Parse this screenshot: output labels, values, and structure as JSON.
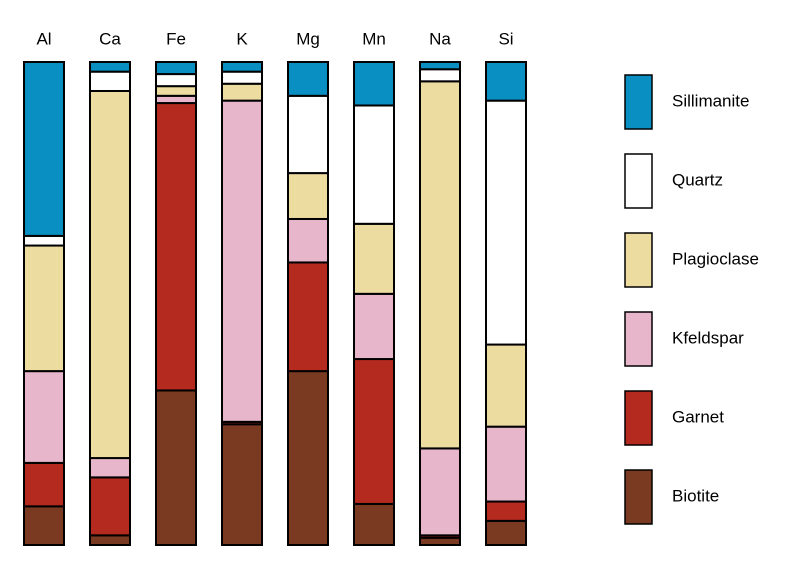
{
  "chart_data": {
    "type": "stacked-bar",
    "categories": [
      "Al",
      "Ca",
      "Fe",
      "K",
      "Mg",
      "Mn",
      "Na",
      "Si"
    ],
    "series": [
      {
        "name": "Biotite",
        "color": "#7a3a22",
        "values": [
          8,
          2,
          32,
          25,
          36,
          8.5,
          1.5,
          5
        ]
      },
      {
        "name": "Garnet",
        "color": "#b52a1f",
        "values": [
          9,
          12,
          59.5,
          0.5,
          22.5,
          30,
          0.5,
          4
        ]
      },
      {
        "name": "Kfeldspar",
        "color": "#e8b6cb",
        "values": [
          19,
          4,
          1.5,
          66.5,
          9,
          13.5,
          18,
          15.5
        ]
      },
      {
        "name": "Plagioclase",
        "color": "#ecdca0",
        "values": [
          26,
          76,
          2,
          3.5,
          9.5,
          14.5,
          76,
          17
        ]
      },
      {
        "name": "Quartz",
        "color": "#ffffff",
        "values": [
          2,
          4,
          2.5,
          2.5,
          16,
          24.5,
          2.5,
          50.5
        ]
      },
      {
        "name": "Sillimanite",
        "color": "#0a8fc2",
        "values": [
          36,
          2,
          2.5,
          2,
          7,
          9,
          1.5,
          8
        ]
      }
    ]
  }
}
